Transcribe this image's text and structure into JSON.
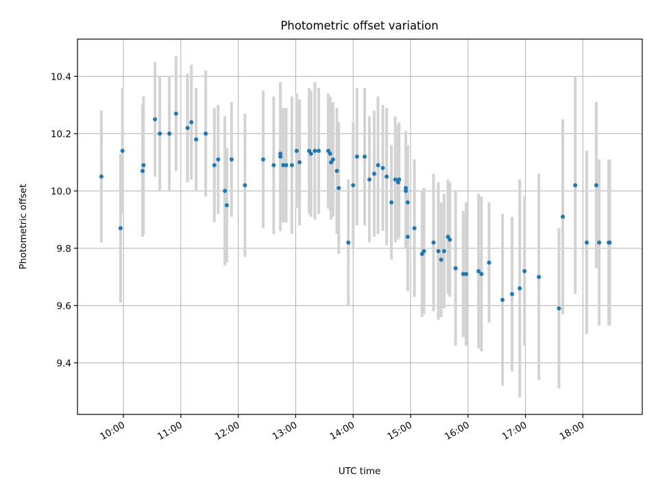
{
  "chart_data": {
    "type": "scatter",
    "title": "Photometric offset variation",
    "xlabel": "UTC time",
    "ylabel": "Photometric offset",
    "xlim": [
      "09:12",
      "19:02"
    ],
    "ylim": [
      9.22,
      10.53
    ],
    "x_ticks": [
      "10:00",
      "11:00",
      "12:00",
      "13:00",
      "14:00",
      "15:00",
      "16:00",
      "17:00",
      "18:00"
    ],
    "y_ticks": [
      9.4,
      9.6,
      9.8,
      10.0,
      10.2,
      10.4
    ],
    "grid": true,
    "colors": {
      "point": "#1f77b4",
      "errorbar": "#d3d3d3",
      "grid": "#b0b0b0"
    },
    "series": [
      {
        "x": [
          "09:37",
          "09:57",
          "09:59",
          "10:20",
          "10:21",
          "10:33",
          "10:38",
          "10:48",
          "10:55",
          "11:07",
          "11:11",
          "11:16",
          "11:26",
          "11:35",
          "11:39",
          "11:46",
          "11:48",
          "11:53",
          "12:07",
          "12:26",
          "12:37",
          "12:44",
          "12:44",
          "12:47",
          "12:50",
          "12:56",
          "13:01",
          "13:04",
          "13:14",
          "13:16",
          "13:20",
          "13:24",
          "13:34",
          "13:36",
          "13:37",
          "13:39",
          "13:43",
          "13:45",
          "13:55",
          "14:00",
          "14:04",
          "14:12",
          "14:17",
          "14:22",
          "14:26",
          "14:31",
          "14:35",
          "14:40",
          "14:44",
          "14:47",
          "14:48",
          "14:55",
          "14:55",
          "14:57",
          "14:57",
          "15:04",
          "15:12",
          "15:14",
          "15:24",
          "15:29",
          "15:32",
          "15:35",
          "15:39",
          "15:41",
          "15:47",
          "15:55",
          "15:58",
          "16:11",
          "16:14",
          "16:22",
          "16:36",
          "16:46",
          "16:54",
          "16:59",
          "17:14",
          "17:35",
          "17:39",
          "17:52",
          "18:04",
          "18:14",
          "18:17",
          "18:27",
          "18:28"
        ],
        "y": [
          10.05,
          9.87,
          10.14,
          10.07,
          10.09,
          10.25,
          10.2,
          10.2,
          10.27,
          10.22,
          10.24,
          10.18,
          10.2,
          10.09,
          10.11,
          10.0,
          9.95,
          10.11,
          10.02,
          10.11,
          10.09,
          10.12,
          10.13,
          10.09,
          10.09,
          10.09,
          10.14,
          10.1,
          10.14,
          10.13,
          10.14,
          10.14,
          10.14,
          10.13,
          10.1,
          10.11,
          10.07,
          10.01,
          9.82,
          10.02,
          10.12,
          10.12,
          10.04,
          10.06,
          10.09,
          10.08,
          10.05,
          9.96,
          10.04,
          10.03,
          10.04,
          10.01,
          10.0,
          9.96,
          9.84,
          9.87,
          9.78,
          9.79,
          9.82,
          9.79,
          9.76,
          9.79,
          9.84,
          9.83,
          9.73,
          9.71,
          9.71,
          9.72,
          9.71,
          9.75,
          9.62,
          9.64,
          9.66,
          9.72,
          9.7,
          9.59,
          9.91,
          10.02,
          9.82,
          10.02,
          9.82,
          9.82,
          9.82
        ],
        "yerr": [
          0.23,
          0.26,
          0.22,
          0.23,
          0.24,
          0.2,
          0.2,
          0.2,
          0.2,
          0.19,
          0.2,
          0.18,
          0.22,
          0.2,
          0.19,
          0.26,
          0.2,
          0.2,
          0.25,
          0.24,
          0.24,
          0.26,
          0.24,
          0.2,
          0.2,
          0.24,
          0.2,
          0.22,
          0.22,
          0.22,
          0.24,
          0.22,
          0.2,
          0.2,
          0.2,
          0.2,
          0.22,
          0.23,
          0.22,
          0.22,
          0.24,
          0.24,
          0.22,
          0.22,
          0.24,
          0.22,
          0.24,
          0.2,
          0.22,
          0.2,
          0.2,
          0.2,
          0.2,
          0.2,
          0.19,
          0.24,
          0.22,
          0.22,
          0.24,
          0.24,
          0.2,
          0.2,
          0.2,
          0.2,
          0.27,
          0.22,
          0.25,
          0.27,
          0.27,
          0.21,
          0.3,
          0.27,
          0.38,
          0.26,
          0.36,
          0.28,
          0.34,
          0.38,
          0.32,
          0.29,
          0.29,
          0.29,
          0.29
        ]
      }
    ]
  }
}
